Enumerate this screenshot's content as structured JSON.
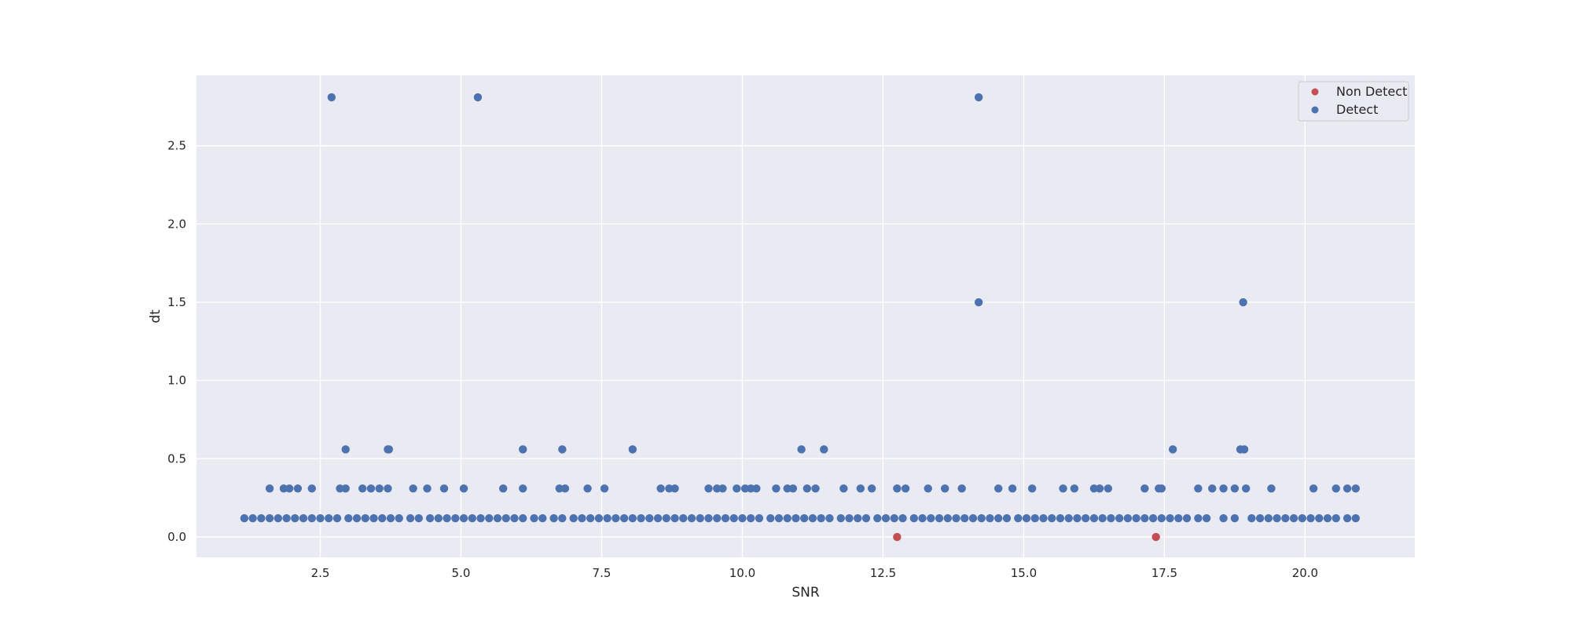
{
  "chart_data": {
    "type": "scatter",
    "title": "",
    "xlabel": "SNR",
    "ylabel": "dt",
    "xlim": [
      0.3,
      21.95
    ],
    "ylim": [
      -0.13,
      2.95
    ],
    "xticks": [
      2.5,
      5.0,
      7.5,
      10.0,
      12.5,
      15.0,
      17.5,
      20.0
    ],
    "xtick_labels": [
      "2.5",
      "5.0",
      "7.5",
      "10.0",
      "12.5",
      "15.0",
      "17.5",
      "20.0"
    ],
    "yticks": [
      0.0,
      0.5,
      1.0,
      1.5,
      2.0,
      2.5
    ],
    "ytick_labels": [
      "0.0",
      "0.5",
      "1.0",
      "1.5",
      "2.0",
      "2.5"
    ],
    "grid": true,
    "legend_position": "top-right",
    "series": [
      {
        "name": "Non Detect",
        "color": "#c44e52",
        "points": [
          [
            12.75,
            0.0
          ],
          [
            17.35,
            0.0
          ]
        ]
      },
      {
        "name": "Detect",
        "color": "#4c72b0",
        "points": [
          [
            2.7,
            2.81
          ],
          [
            5.3,
            2.81
          ],
          [
            14.2,
            2.81
          ],
          [
            14.2,
            1.5
          ],
          [
            18.9,
            1.5
          ],
          [
            2.95,
            0.56
          ],
          [
            3.7,
            0.56
          ],
          [
            3.72,
            0.56
          ],
          [
            6.1,
            0.56
          ],
          [
            6.8,
            0.56
          ],
          [
            8.05,
            0.56
          ],
          [
            11.05,
            0.56
          ],
          [
            11.45,
            0.56
          ],
          [
            17.65,
            0.56
          ],
          [
            18.85,
            0.56
          ],
          [
            18.92,
            0.56
          ],
          [
            1.6,
            0.31
          ],
          [
            1.85,
            0.31
          ],
          [
            1.95,
            0.31
          ],
          [
            2.1,
            0.31
          ],
          [
            2.35,
            0.31
          ],
          [
            2.85,
            0.31
          ],
          [
            2.95,
            0.31
          ],
          [
            3.25,
            0.31
          ],
          [
            3.4,
            0.31
          ],
          [
            3.55,
            0.31
          ],
          [
            3.7,
            0.31
          ],
          [
            4.15,
            0.31
          ],
          [
            4.4,
            0.31
          ],
          [
            4.7,
            0.31
          ],
          [
            5.05,
            0.31
          ],
          [
            5.75,
            0.31
          ],
          [
            6.1,
            0.31
          ],
          [
            6.75,
            0.31
          ],
          [
            6.85,
            0.31
          ],
          [
            7.25,
            0.31
          ],
          [
            7.55,
            0.31
          ],
          [
            8.55,
            0.31
          ],
          [
            8.7,
            0.31
          ],
          [
            8.8,
            0.31
          ],
          [
            9.4,
            0.31
          ],
          [
            9.55,
            0.31
          ],
          [
            9.65,
            0.31
          ],
          [
            9.9,
            0.31
          ],
          [
            10.05,
            0.31
          ],
          [
            10.15,
            0.31
          ],
          [
            10.25,
            0.31
          ],
          [
            10.6,
            0.31
          ],
          [
            10.8,
            0.31
          ],
          [
            10.9,
            0.31
          ],
          [
            11.15,
            0.31
          ],
          [
            11.3,
            0.31
          ],
          [
            11.8,
            0.31
          ],
          [
            12.1,
            0.31
          ],
          [
            12.3,
            0.31
          ],
          [
            12.75,
            0.31
          ],
          [
            12.9,
            0.31
          ],
          [
            13.3,
            0.31
          ],
          [
            13.6,
            0.31
          ],
          [
            13.9,
            0.31
          ],
          [
            14.55,
            0.31
          ],
          [
            14.8,
            0.31
          ],
          [
            15.15,
            0.31
          ],
          [
            15.7,
            0.31
          ],
          [
            15.9,
            0.31
          ],
          [
            16.25,
            0.31
          ],
          [
            16.35,
            0.31
          ],
          [
            16.5,
            0.31
          ],
          [
            17.15,
            0.31
          ],
          [
            17.4,
            0.31
          ],
          [
            17.45,
            0.31
          ],
          [
            18.1,
            0.31
          ],
          [
            18.35,
            0.31
          ],
          [
            18.55,
            0.31
          ],
          [
            18.75,
            0.31
          ],
          [
            18.95,
            0.31
          ],
          [
            19.4,
            0.31
          ],
          [
            20.15,
            0.31
          ],
          [
            20.55,
            0.31
          ],
          [
            20.75,
            0.31
          ],
          [
            20.9,
            0.31
          ],
          [
            1.15,
            0.12
          ],
          [
            1.3,
            0.12
          ],
          [
            1.45,
            0.12
          ],
          [
            1.6,
            0.12
          ],
          [
            1.75,
            0.12
          ],
          [
            1.9,
            0.12
          ],
          [
            2.05,
            0.12
          ],
          [
            2.2,
            0.12
          ],
          [
            2.35,
            0.12
          ],
          [
            2.5,
            0.12
          ],
          [
            2.65,
            0.12
          ],
          [
            2.8,
            0.12
          ],
          [
            3.0,
            0.12
          ],
          [
            3.15,
            0.12
          ],
          [
            3.3,
            0.12
          ],
          [
            3.45,
            0.12
          ],
          [
            3.6,
            0.12
          ],
          [
            3.75,
            0.12
          ],
          [
            3.9,
            0.12
          ],
          [
            4.1,
            0.12
          ],
          [
            4.25,
            0.12
          ],
          [
            4.45,
            0.12
          ],
          [
            4.6,
            0.12
          ],
          [
            4.75,
            0.12
          ],
          [
            4.9,
            0.12
          ],
          [
            5.05,
            0.12
          ],
          [
            5.2,
            0.12
          ],
          [
            5.35,
            0.12
          ],
          [
            5.5,
            0.12
          ],
          [
            5.65,
            0.12
          ],
          [
            5.8,
            0.12
          ],
          [
            5.95,
            0.12
          ],
          [
            6.1,
            0.12
          ],
          [
            6.3,
            0.12
          ],
          [
            6.45,
            0.12
          ],
          [
            6.65,
            0.12
          ],
          [
            6.8,
            0.12
          ],
          [
            7.0,
            0.12
          ],
          [
            7.15,
            0.12
          ],
          [
            7.3,
            0.12
          ],
          [
            7.45,
            0.12
          ],
          [
            7.6,
            0.12
          ],
          [
            7.75,
            0.12
          ],
          [
            7.9,
            0.12
          ],
          [
            8.05,
            0.12
          ],
          [
            8.2,
            0.12
          ],
          [
            8.35,
            0.12
          ],
          [
            8.5,
            0.12
          ],
          [
            8.65,
            0.12
          ],
          [
            8.8,
            0.12
          ],
          [
            8.95,
            0.12
          ],
          [
            9.1,
            0.12
          ],
          [
            9.25,
            0.12
          ],
          [
            9.4,
            0.12
          ],
          [
            9.55,
            0.12
          ],
          [
            9.7,
            0.12
          ],
          [
            9.85,
            0.12
          ],
          [
            10.0,
            0.12
          ],
          [
            10.15,
            0.12
          ],
          [
            10.3,
            0.12
          ],
          [
            10.5,
            0.12
          ],
          [
            10.65,
            0.12
          ],
          [
            10.8,
            0.12
          ],
          [
            10.95,
            0.12
          ],
          [
            11.1,
            0.12
          ],
          [
            11.25,
            0.12
          ],
          [
            11.4,
            0.12
          ],
          [
            11.55,
            0.12
          ],
          [
            11.75,
            0.12
          ],
          [
            11.9,
            0.12
          ],
          [
            12.05,
            0.12
          ],
          [
            12.2,
            0.12
          ],
          [
            12.4,
            0.12
          ],
          [
            12.55,
            0.12
          ],
          [
            12.7,
            0.12
          ],
          [
            12.85,
            0.12
          ],
          [
            13.05,
            0.12
          ],
          [
            13.2,
            0.12
          ],
          [
            13.35,
            0.12
          ],
          [
            13.5,
            0.12
          ],
          [
            13.65,
            0.12
          ],
          [
            13.8,
            0.12
          ],
          [
            13.95,
            0.12
          ],
          [
            14.1,
            0.12
          ],
          [
            14.25,
            0.12
          ],
          [
            14.4,
            0.12
          ],
          [
            14.55,
            0.12
          ],
          [
            14.7,
            0.12
          ],
          [
            14.9,
            0.12
          ],
          [
            15.05,
            0.12
          ],
          [
            15.2,
            0.12
          ],
          [
            15.35,
            0.12
          ],
          [
            15.5,
            0.12
          ],
          [
            15.65,
            0.12
          ],
          [
            15.8,
            0.12
          ],
          [
            15.95,
            0.12
          ],
          [
            16.1,
            0.12
          ],
          [
            16.25,
            0.12
          ],
          [
            16.4,
            0.12
          ],
          [
            16.55,
            0.12
          ],
          [
            16.7,
            0.12
          ],
          [
            16.85,
            0.12
          ],
          [
            17.0,
            0.12
          ],
          [
            17.15,
            0.12
          ],
          [
            17.3,
            0.12
          ],
          [
            17.45,
            0.12
          ],
          [
            17.6,
            0.12
          ],
          [
            17.75,
            0.12
          ],
          [
            17.9,
            0.12
          ],
          [
            18.1,
            0.12
          ],
          [
            18.25,
            0.12
          ],
          [
            18.55,
            0.12
          ],
          [
            18.75,
            0.12
          ],
          [
            19.05,
            0.12
          ],
          [
            19.2,
            0.12
          ],
          [
            19.35,
            0.12
          ],
          [
            19.5,
            0.12
          ],
          [
            19.65,
            0.12
          ],
          [
            19.8,
            0.12
          ],
          [
            19.95,
            0.12
          ],
          [
            20.1,
            0.12
          ],
          [
            20.25,
            0.12
          ],
          [
            20.4,
            0.12
          ],
          [
            20.55,
            0.12
          ],
          [
            20.75,
            0.12
          ],
          [
            20.9,
            0.12
          ]
        ]
      }
    ]
  }
}
